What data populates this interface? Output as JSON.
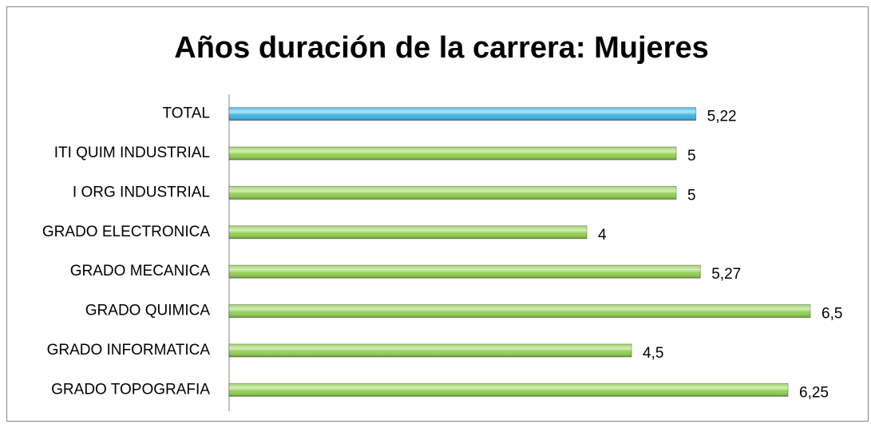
{
  "chart_data": {
    "type": "bar",
    "orientation": "horizontal",
    "title": "Años duración de la carrera: Mujeres",
    "categories": [
      "TOTAL",
      "ITI QUIM INDUSTRIAL",
      "I ORG INDUSTRIAL",
      "GRADO ELECTRONICA",
      "GRADO MECANICA",
      "GRADO QUIMICA",
      "GRADO INFORMATICA",
      "GRADO TOPOGRAFIA"
    ],
    "values": [
      5.22,
      5,
      5,
      4,
      5.27,
      6.5,
      4.5,
      6.25
    ],
    "value_labels": [
      "5,22",
      "5",
      "5",
      "4",
      "5,27",
      "6,5",
      "4,5",
      "6,25"
    ],
    "colors": [
      "#3cb6e3",
      "#92d050",
      "#92d050",
      "#92d050",
      "#92d050",
      "#92d050",
      "#92d050",
      "#92d050"
    ],
    "xlim": [
      0,
      7
    ]
  }
}
